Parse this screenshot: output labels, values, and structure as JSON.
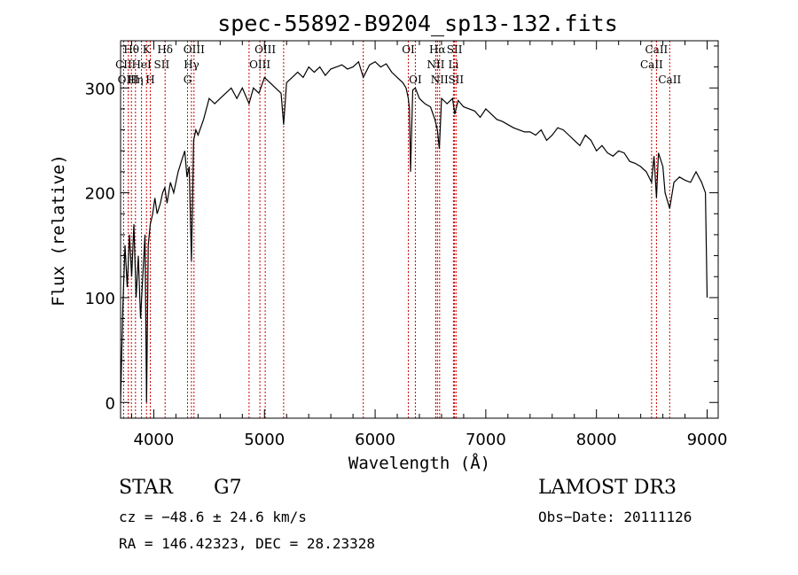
{
  "chart_data": {
    "type": "line",
    "title": "spec-55892-B9204_sp13-132.fits",
    "xlabel": "Wavelength (Å)",
    "ylabel": "Flux (relative)",
    "xlim": [
      3700,
      9100
    ],
    "ylim": [
      -15,
      345
    ],
    "xticks": [
      4000,
      5000,
      6000,
      7000,
      8000,
      9000
    ],
    "yticks": [
      0,
      100,
      200,
      300
    ],
    "minor_xtick_step": 200,
    "minor_ytick_step": 20,
    "series": [
      {
        "name": "flux",
        "color": "#000000",
        "x": [
          3700,
          3720,
          3740,
          3760,
          3780,
          3800,
          3820,
          3840,
          3860,
          3880,
          3900,
          3920,
          3935,
          3950,
          3968,
          3990,
          4010,
          4030,
          4060,
          4080,
          4100,
          4120,
          4150,
          4180,
          4200,
          4220,
          4250,
          4280,
          4300,
          4320,
          4340,
          4360,
          4380,
          4400,
          4450,
          4500,
          4550,
          4600,
          4650,
          4700,
          4750,
          4800,
          4861,
          4900,
          4950,
          5000,
          5050,
          5100,
          5150,
          5173,
          5200,
          5250,
          5300,
          5350,
          5400,
          5450,
          5500,
          5550,
          5600,
          5650,
          5700,
          5750,
          5800,
          5850,
          5893,
          5950,
          6000,
          6050,
          6100,
          6150,
          6200,
          6250,
          6280,
          6300,
          6310,
          6320,
          6340,
          6363,
          6400,
          6450,
          6500,
          6540,
          6563,
          6580,
          6600,
          6650,
          6700,
          6720,
          6750,
          6800,
          6850,
          6900,
          6950,
          7000,
          7050,
          7100,
          7150,
          7200,
          7250,
          7300,
          7350,
          7400,
          7450,
          7500,
          7550,
          7600,
          7650,
          7700,
          7750,
          7800,
          7850,
          7900,
          7950,
          8000,
          8050,
          8100,
          8150,
          8200,
          8250,
          8300,
          8350,
          8400,
          8450,
          8498,
          8520,
          8542,
          8560,
          8600,
          8620,
          8662,
          8700,
          8750,
          8800,
          8850,
          8900,
          8950,
          8985,
          9000
        ],
        "y": [
          0,
          90,
          150,
          110,
          160,
          120,
          170,
          100,
          140,
          80,
          120,
          160,
          0,
          150,
          170,
          180,
          195,
          180,
          190,
          200,
          205,
          190,
          210,
          200,
          210,
          220,
          230,
          240,
          215,
          225,
          135,
          250,
          260,
          255,
          270,
          290,
          285,
          290,
          295,
          300,
          290,
          300,
          285,
          300,
          295,
          310,
          305,
          300,
          295,
          265,
          305,
          310,
          315,
          310,
          320,
          315,
          320,
          312,
          318,
          320,
          322,
          318,
          320,
          325,
          310,
          322,
          325,
          320,
          323,
          315,
          310,
          305,
          300,
          290,
          280,
          220,
          298,
          300,
          290,
          285,
          282,
          270,
          260,
          242,
          290,
          285,
          290,
          275,
          288,
          282,
          280,
          278,
          272,
          280,
          275,
          270,
          268,
          265,
          262,
          260,
          258,
          258,
          255,
          260,
          250,
          255,
          262,
          260,
          255,
          250,
          245,
          255,
          250,
          240,
          245,
          238,
          235,
          240,
          238,
          230,
          228,
          225,
          220,
          210,
          235,
          195,
          238,
          225,
          200,
          185,
          210,
          215,
          212,
          210,
          220,
          210,
          200,
          100
        ]
      }
    ],
    "line_labels": [
      {
        "name": "Hθ",
        "wavelength": 3798,
        "row": 0
      },
      {
        "name": "CII",
        "wavelength": 3727,
        "row": 1
      },
      {
        "name": "OIII",
        "wavelength": 3770,
        "row": 2
      },
      {
        "name": "K",
        "wavelength": 3934,
        "row": 0
      },
      {
        "name": "HeI",
        "wavelength": 3889,
        "row": 1
      },
      {
        "name": "Hη",
        "wavelength": 3835,
        "row": 2
      },
      {
        "name": "H",
        "wavelength": 3968,
        "row": 2
      },
      {
        "name": "Hδ",
        "wavelength": 4102,
        "row": 0
      },
      {
        "name": "SII",
        "wavelength": 4072,
        "row": 1
      },
      {
        "name": "OIII",
        "wavelength": 4363,
        "row": 0
      },
      {
        "name": "Hγ",
        "wavelength": 4340,
        "row": 1
      },
      {
        "name": "G",
        "wavelength": 4305,
        "row": 2
      },
      {
        "name": "OIII",
        "wavelength": 5007,
        "row": 0
      },
      {
        "name": "OIII",
        "wavelength": 4959,
        "row": 1
      },
      {
        "name": "OI",
        "wavelength": 6300,
        "row": 0
      },
      {
        "name": "OI",
        "wavelength": 6363,
        "row": 2
      },
      {
        "name": "Hα",
        "wavelength": 6563,
        "row": 0
      },
      {
        "name": "SII",
        "wavelength": 6717,
        "row": 0
      },
      {
        "name": "NII",
        "wavelength": 6548,
        "row": 1
      },
      {
        "name": "Li",
        "wavelength": 6708,
        "row": 1
      },
      {
        "name": "NII",
        "wavelength": 6583,
        "row": 2
      },
      {
        "name": "SII",
        "wavelength": 6731,
        "row": 2
      },
      {
        "name": "CaII",
        "wavelength": 8542,
        "row": 0
      },
      {
        "name": "CaII",
        "wavelength": 8498,
        "row": 1
      },
      {
        "name": "CaII",
        "wavelength": 8662,
        "row": 2
      }
    ],
    "marker_lines": [
      3727,
      3770,
      3798,
      3835,
      3889,
      3934,
      3968,
      4102,
      4305,
      4340,
      4363,
      4861,
      4959,
      5007,
      5173,
      5893,
      6300,
      6363,
      6548,
      6563,
      6583,
      6708,
      6717,
      6731,
      8498,
      8542,
      8662
    ],
    "marker_color": "#cc0000"
  },
  "info": {
    "class_label": "STAR",
    "subclass": "G7",
    "survey": "LAMOST DR3",
    "cz": "cz = −48.6 ± 24.6 km/s",
    "obs_date": "Obs−Date: 20111126",
    "radec": "RA = 146.42323, DEC =  28.23328"
  }
}
